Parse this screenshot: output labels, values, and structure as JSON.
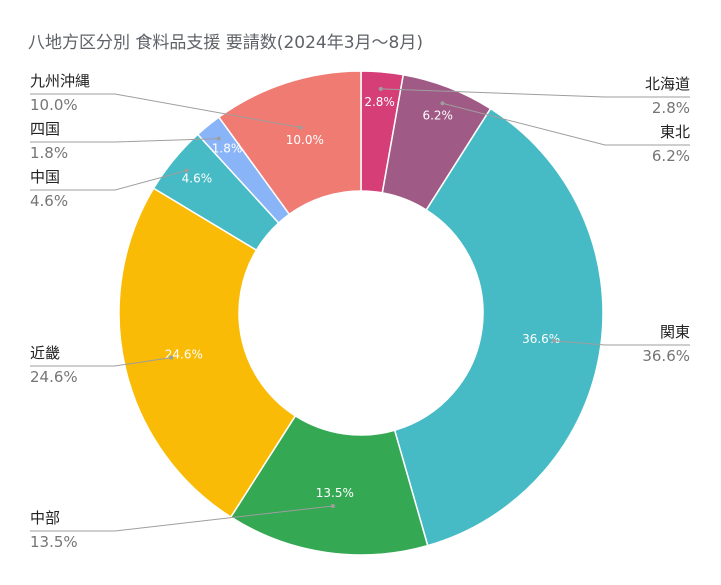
{
  "chart_data": {
    "type": "pie",
    "title": "八地方区分別 食料品支援 要請数(2024年3月〜8月)",
    "donut": true,
    "slices": [
      {
        "name": "北海道",
        "value": 2.8,
        "label": "2.8%",
        "color": "#d63e78"
      },
      {
        "name": "東北",
        "value": 6.2,
        "label": "6.2%",
        "color": "#a05a86"
      },
      {
        "name": "関東",
        "value": 36.6,
        "label": "36.6%",
        "color": "#46bbc5"
      },
      {
        "name": "中部",
        "value": 13.5,
        "label": "13.5%",
        "color": "#35a853"
      },
      {
        "name": "近畿",
        "value": 24.6,
        "label": "24.6%",
        "color": "#f9bb05"
      },
      {
        "name": "中国",
        "value": 4.6,
        "label": "4.6%",
        "color": "#46bbc5"
      },
      {
        "name": "四国",
        "value": 1.8,
        "label": "1.8%",
        "color": "#8ab4f8"
      },
      {
        "name": "九州沖縄",
        "value": 10.0,
        "label": "10.0%",
        "color": "#f07b72"
      }
    ]
  }
}
